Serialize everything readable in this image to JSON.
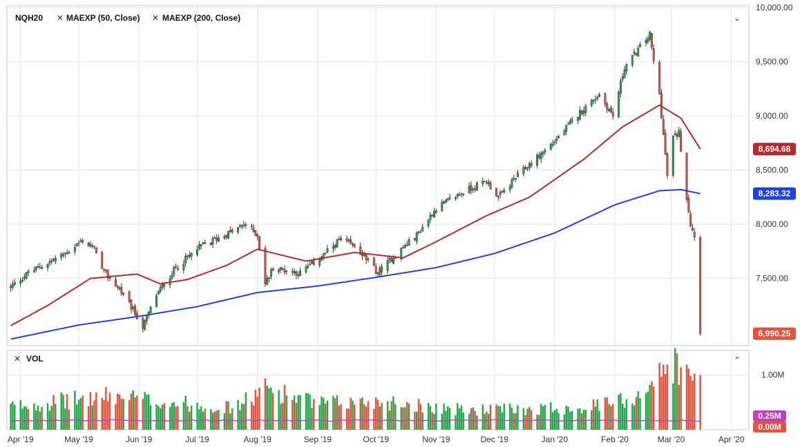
{
  "legend": {
    "symbol": "NQH20",
    "studies": [
      {
        "label": "MAEXP (50, Close)",
        "color": "#b52a2a"
      },
      {
        "label": "MAEXP (200, Close)",
        "color": "#1f3fe0"
      }
    ],
    "volume_label": "VOL",
    "close_icon": "close-x-icon",
    "collapse_icon": "chevron-up-icon"
  },
  "colors": {
    "up": "#22a84a",
    "down": "#e0533c",
    "ma50": "#b52a2a",
    "ma200": "#1f3fe0",
    "vol_ma": "#c040c0",
    "grid": "#e4e4e4",
    "border": "#c8c8c8"
  },
  "chart_data": [
    {
      "type": "candlestick",
      "symbol": "NQH20",
      "y_ticks": [
        "10,000.00",
        "9,500.00",
        "9,000.00",
        "8,500.00",
        "8,000.00",
        "7,500.00"
      ],
      "y_tick_values": [
        10000,
        9500,
        9000,
        8500,
        8000,
        7500
      ],
      "ylim": [
        6880,
        10020
      ],
      "x_ticks": [
        "Apr '19",
        "May '19",
        "Jun '19",
        "Jul '19",
        "Aug '19",
        "Sep '19",
        "Oct '19",
        "Nov '19",
        "Dec '19",
        "Jan '20",
        "Feb '20",
        "Mar '20",
        "Apr '20"
      ],
      "x_tick_dates": [
        "2019-04-01",
        "2019-05-01",
        "2019-06-01",
        "2019-07-01",
        "2019-08-01",
        "2019-09-01",
        "2019-10-01",
        "2019-11-01",
        "2019-12-01",
        "2020-01-01",
        "2020-02-01",
        "2020-03-01",
        "2020-04-01"
      ],
      "xlim": [
        "2019-03-25",
        "2020-04-10"
      ],
      "close_anchors": [
        [
          "2019-03-27",
          7420
        ],
        [
          "2019-04-05",
          7550
        ],
        [
          "2019-04-23",
          7720
        ],
        [
          "2019-05-03",
          7850
        ],
        [
          "2019-05-10",
          7760
        ],
        [
          "2019-05-13",
          7580
        ],
        [
          "2019-05-22",
          7400
        ],
        [
          "2019-05-31",
          7150
        ],
        [
          "2019-06-03",
          7050
        ],
        [
          "2019-06-10",
          7350
        ],
        [
          "2019-06-20",
          7600
        ],
        [
          "2019-07-03",
          7800
        ],
        [
          "2019-07-15",
          7900
        ],
        [
          "2019-07-26",
          8000
        ],
        [
          "2019-08-01",
          7900
        ],
        [
          "2019-08-05",
          7450
        ],
        [
          "2019-08-09",
          7600
        ],
        [
          "2019-08-23",
          7550
        ],
        [
          "2019-09-05",
          7730
        ],
        [
          "2019-09-12",
          7850
        ],
        [
          "2019-09-20",
          7800
        ],
        [
          "2019-10-02",
          7550
        ],
        [
          "2019-10-10",
          7700
        ],
        [
          "2019-10-22",
          7900
        ],
        [
          "2019-11-01",
          8150
        ],
        [
          "2019-11-15",
          8300
        ],
        [
          "2019-11-27",
          8400
        ],
        [
          "2019-12-03",
          8250
        ],
        [
          "2019-12-13",
          8450
        ],
        [
          "2019-12-31",
          8750
        ],
        [
          "2020-01-15",
          9050
        ],
        [
          "2020-01-24",
          9200
        ],
        [
          "2020-01-31",
          9000
        ],
        [
          "2020-02-06",
          9450
        ],
        [
          "2020-02-19",
          9750
        ],
        [
          "2020-02-21",
          9500
        ],
        [
          "2020-02-24",
          9200
        ],
        [
          "2020-02-28",
          8450
        ],
        [
          "2020-03-02",
          8800
        ],
        [
          "2020-03-05",
          8850
        ],
        [
          "2020-03-09",
          8250
        ],
        [
          "2020-03-11",
          8000
        ],
        [
          "2020-03-13",
          7900
        ],
        [
          "2020-03-16",
          6990
        ]
      ],
      "last_close": {
        "label": "6,990.25",
        "value": 6990.25,
        "color": "#e0533c"
      },
      "series": [
        {
          "name": "MAEXP (50, Close)",
          "color": "#b52a2a",
          "last_label": "8,694.68",
          "last_value": 8694.68,
          "points": [
            [
              "2019-03-27",
              7065
            ],
            [
              "2019-04-15",
              7250
            ],
            [
              "2019-05-07",
              7500
            ],
            [
              "2019-05-31",
              7540
            ],
            [
              "2019-06-12",
              7450
            ],
            [
              "2019-06-26",
              7490
            ],
            [
              "2019-07-16",
              7620
            ],
            [
              "2019-08-01",
              7770
            ],
            [
              "2019-08-26",
              7660
            ],
            [
              "2019-09-20",
              7740
            ],
            [
              "2019-10-15",
              7690
            ],
            [
              "2019-10-31",
              7830
            ],
            [
              "2019-11-27",
              8080
            ],
            [
              "2019-12-19",
              8250
            ],
            [
              "2020-01-16",
              8600
            ],
            [
              "2020-02-05",
              8900
            ],
            [
              "2020-02-24",
              9100
            ],
            [
              "2020-03-06",
              8980
            ],
            [
              "2020-03-16",
              8694.68
            ]
          ]
        },
        {
          "name": "MAEXP (200, Close)",
          "color": "#1f3fe0",
          "last_label": "8,283.32",
          "last_value": 8283.32,
          "points": [
            [
              "2019-03-27",
              6940
            ],
            [
              "2019-05-01",
              7070
            ],
            [
              "2019-06-01",
              7150
            ],
            [
              "2019-07-01",
              7240
            ],
            [
              "2019-08-01",
              7370
            ],
            [
              "2019-09-01",
              7430
            ],
            [
              "2019-10-01",
              7510
            ],
            [
              "2019-11-01",
              7600
            ],
            [
              "2019-12-01",
              7730
            ],
            [
              "2020-01-01",
              7920
            ],
            [
              "2020-02-01",
              8180
            ],
            [
              "2020-02-24",
              8310
            ],
            [
              "2020-03-06",
              8320
            ],
            [
              "2020-03-16",
              8283.32
            ]
          ]
        }
      ]
    },
    {
      "type": "bar",
      "title": "VOL",
      "y_ticks": [
        "1.00M"
      ],
      "y_tick_values": [
        1.0
      ],
      "ylim": [
        0,
        1.45
      ],
      "vol_anchors": [
        [
          "2019-03-27",
          0.45
        ],
        [
          "2019-05-20",
          0.65
        ],
        [
          "2019-06-10",
          0.55
        ],
        [
          "2019-07-20",
          0.42
        ],
        [
          "2019-08-06",
          0.8
        ],
        [
          "2019-09-01",
          0.5
        ],
        [
          "2019-10-05",
          0.55
        ],
        [
          "2019-11-15",
          0.38
        ],
        [
          "2019-12-20",
          0.4
        ],
        [
          "2020-01-20",
          0.45
        ],
        [
          "2020-02-10",
          0.6
        ],
        [
          "2020-02-26",
          1.1
        ],
        [
          "2020-03-03",
          1.3
        ],
        [
          "2020-03-11",
          0.95
        ],
        [
          "2020-03-16",
          1.0
        ]
      ],
      "ma_labels": [
        {
          "label": "0.25M",
          "value": 0.25,
          "color": "#c040c0"
        },
        {
          "label": "0.00M",
          "value": 0.0,
          "color": "#e0533c"
        }
      ]
    }
  ]
}
